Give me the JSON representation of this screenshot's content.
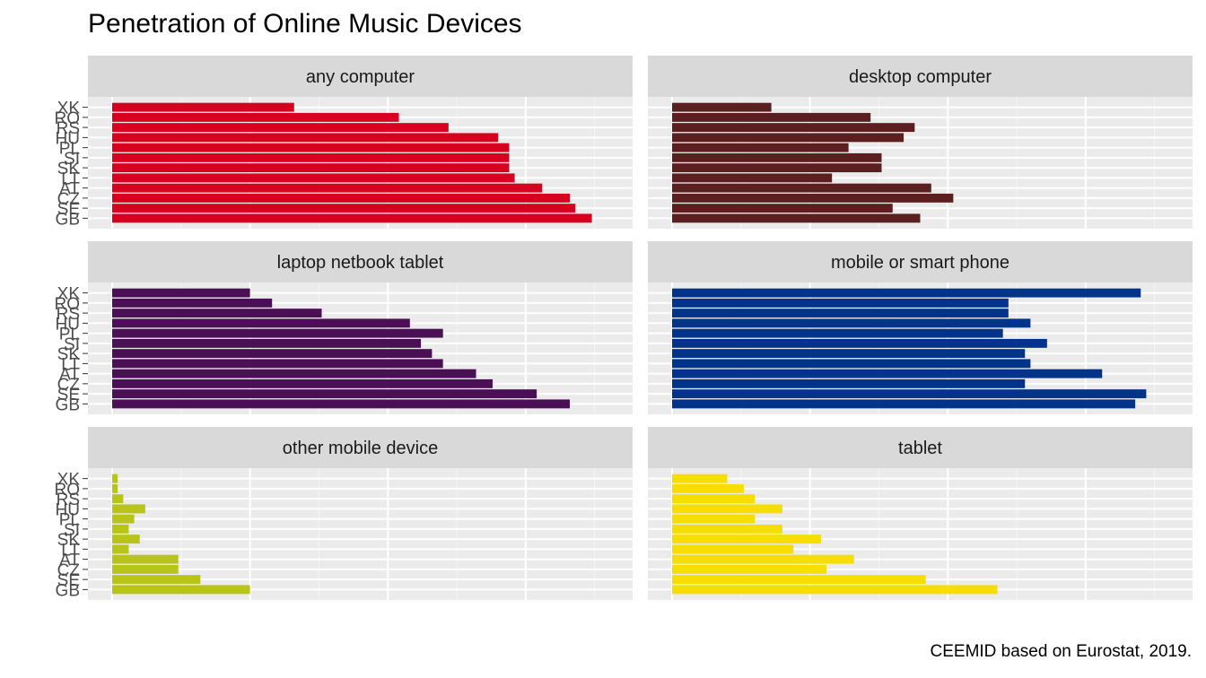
{
  "chart_data": {
    "type": "bar",
    "orientation": "horizontal",
    "facet_layout": "3 rows x 2 columns",
    "title": "Penetration of Online Music Devices",
    "caption": "CEEMID based on Eurostat, 2019.",
    "xlabel": "",
    "ylabel": "",
    "categories": [
      "XK",
      "RO",
      "RS",
      "HU",
      "PL",
      "SI",
      "SK",
      "LT",
      "AT",
      "CZ",
      "SE",
      "GB"
    ],
    "x_tick_labels_shown": false,
    "xlim": [
      0,
      90
    ],
    "grid": true,
    "legend": "none",
    "panels": [
      {
        "name": "any computer",
        "color": "#D7001E",
        "values": [
          33,
          52,
          61,
          70,
          72,
          72,
          72,
          73,
          78,
          83,
          84,
          87
        ]
      },
      {
        "name": "desktop computer",
        "color": "#5C1F1F",
        "values": [
          18,
          36,
          44,
          42,
          32,
          38,
          38,
          29,
          47,
          51,
          40,
          45
        ]
      },
      {
        "name": "laptop netbook tablet",
        "color": "#4B0F55",
        "values": [
          25,
          29,
          38,
          54,
          60,
          56,
          58,
          60,
          66,
          69,
          77,
          83
        ]
      },
      {
        "name": "mobile or smart phone",
        "color": "#00348A",
        "values": [
          85,
          61,
          61,
          65,
          60,
          68,
          64,
          65,
          78,
          64,
          86,
          84
        ]
      },
      {
        "name": "other mobile device",
        "color": "#B8C41A",
        "values": [
          1,
          1,
          2,
          6,
          4,
          3,
          5,
          3,
          12,
          12,
          16,
          25
        ]
      },
      {
        "name": "tablet",
        "color": "#F5DE00",
        "values": [
          10,
          13,
          15,
          20,
          15,
          20,
          27,
          22,
          33,
          28,
          46,
          59
        ]
      }
    ]
  }
}
